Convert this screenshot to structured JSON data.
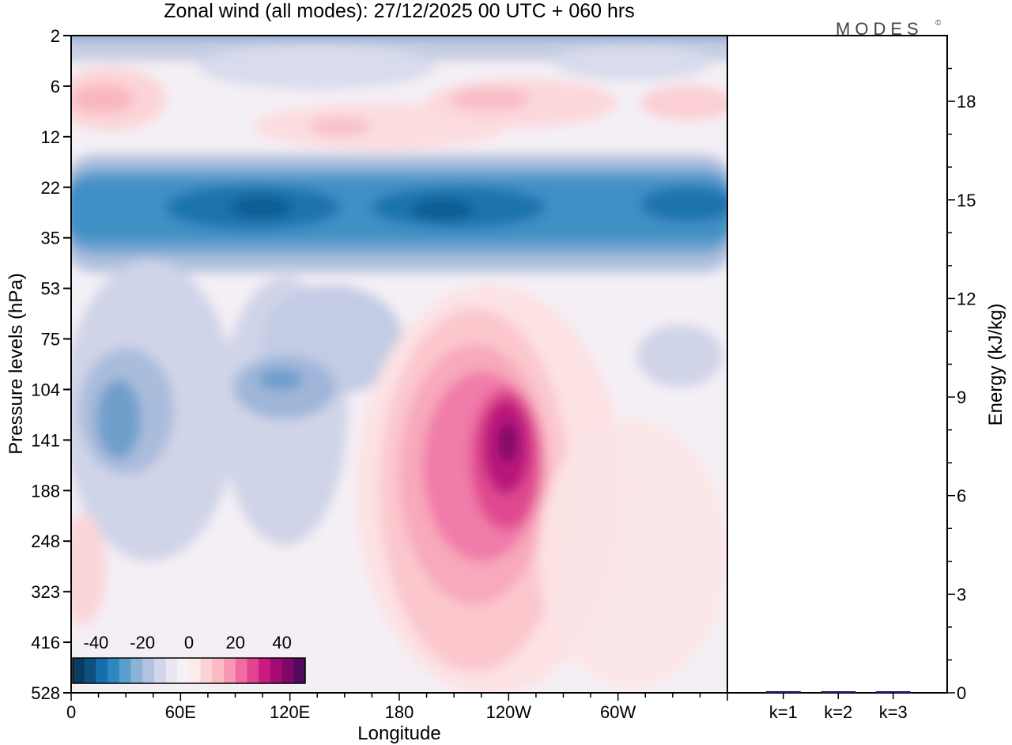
{
  "chart_data": [
    {
      "type": "heatmap",
      "title": "Zonal wind (all modes):  27/12/2025  00 UTC  + 060 hrs",
      "xlabel": "Longitude",
      "ylabel": "Pressure levels (hPa)",
      "x_tick_labels": [
        "0",
        "60E",
        "120E",
        "180",
        "120W",
        "60W"
      ],
      "x_ticks_deg": [
        0,
        60,
        120,
        180,
        240,
        300
      ],
      "x_range": [
        0,
        360
      ],
      "y_tick_labels": [
        "2",
        "6",
        "12",
        "22",
        "35",
        "53",
        "75",
        "104",
        "141",
        "188",
        "248",
        "323",
        "416",
        "528"
      ],
      "colorbar": {
        "tick_labels": [
          "-40",
          "-20",
          "0",
          "20",
          "40"
        ],
        "tick_values": [
          -40,
          -20,
          0,
          20,
          40
        ],
        "range": [
          -50,
          50
        ],
        "colors": [
          "#0b3b5e",
          "#0d4f80",
          "#156fae",
          "#2e87bf",
          "#5a9ecd",
          "#8cb2d6",
          "#b3c3df",
          "#d2d6ea",
          "#e9e7f2",
          "#f6f1f6",
          "#fdebec",
          "#fcd3d5",
          "#fabbc3",
          "#f899b3",
          "#f06ca3",
          "#e2438f",
          "#c81a80",
          "#a30a74",
          "#7e0767",
          "#520a5c"
        ]
      },
      "features": [
        {
          "region": "upper stratosphere (2-12 hPa)",
          "sign": "weak positive/negative",
          "value": 10
        },
        {
          "region": "22-35 hPa band, all longitudes",
          "sign": "negative",
          "value": -35
        },
        {
          "region": "100-200 hPa near 120W",
          "sign": "positive maximum",
          "value": 45
        },
        {
          "region": "100-150 hPa near 20E and 90E",
          "sign": "negative",
          "value": -25
        }
      ]
    },
    {
      "type": "bar",
      "ylabel": "Energy (kJ/kg)",
      "categories": [
        "k=1",
        "k=2",
        "k=3"
      ],
      "values": [
        0.05,
        0.03,
        0.04
      ],
      "ylim": [
        0,
        20
      ],
      "y_tick_labels": [
        "0",
        "3",
        "6",
        "9",
        "12",
        "15",
        "18"
      ],
      "y_ticks": [
        0,
        3,
        6,
        9,
        12,
        15,
        18
      ],
      "bar_color": "#1a1a70"
    }
  ],
  "logo": {
    "text": "MODES",
    "mark": "©"
  }
}
